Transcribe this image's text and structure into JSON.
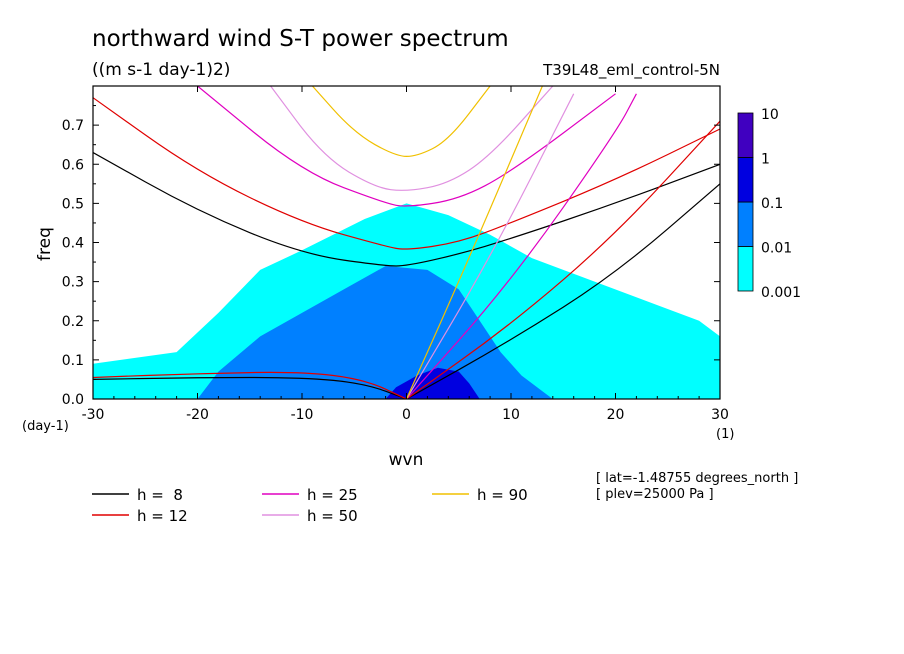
{
  "chart_data": {
    "type": "contour",
    "title": "northward wind S-T power spectrum",
    "units": "((m s-1 day-1)2)",
    "dataset": "T39L48_eml_control-5N",
    "xlabel": "wvn",
    "ylabel": "freq",
    "x_unit_label": "(1)",
    "y_unit_label": "(day-1)",
    "xlim": [
      -30,
      30
    ],
    "ylim": [
      0,
      0.8
    ],
    "x_ticks": [
      -30,
      -20,
      -10,
      0,
      10,
      20,
      30
    ],
    "x_tick_labels": [
      "-30",
      "-20",
      "-10",
      "0",
      "10",
      "20",
      "30"
    ],
    "y_ticks": [
      0,
      0.1,
      0.2,
      0.3,
      0.4,
      0.5,
      0.6,
      0.7
    ],
    "y_tick_labels": [
      "0.0",
      "0.1",
      "0.2",
      "0.3",
      "0.4",
      "0.5",
      "0.6",
      "0.7"
    ],
    "colorbar": {
      "levels": [
        "0.001",
        "0.01",
        "0.1",
        "1",
        "10"
      ],
      "colors": [
        "#00ffff",
        "#0080ff",
        "#0000e0",
        "#4000c0"
      ]
    },
    "contour_regions": [
      {
        "level": "0.001-0.01",
        "color": "#00ffff",
        "polygon": [
          [
            -30,
            0.0
          ],
          [
            -30,
            0.09
          ],
          [
            -22,
            0.12
          ],
          [
            -18,
            0.22
          ],
          [
            -14,
            0.33
          ],
          [
            -10,
            0.38
          ],
          [
            -4,
            0.46
          ],
          [
            0,
            0.5
          ],
          [
            4,
            0.47
          ],
          [
            8,
            0.42
          ],
          [
            12,
            0.36
          ],
          [
            18,
            0.3
          ],
          [
            24,
            0.24
          ],
          [
            28,
            0.2
          ],
          [
            30,
            0.16
          ],
          [
            30,
            0.0
          ]
        ]
      },
      {
        "level": "0.01-0.1",
        "color": "#0080ff",
        "polygon": [
          [
            -20,
            0.0
          ],
          [
            -18,
            0.07
          ],
          [
            -14,
            0.16
          ],
          [
            -10,
            0.22
          ],
          [
            -6,
            0.28
          ],
          [
            -2,
            0.34
          ],
          [
            2,
            0.33
          ],
          [
            5,
            0.28
          ],
          [
            7,
            0.2
          ],
          [
            9,
            0.12
          ],
          [
            11,
            0.06
          ],
          [
            13,
            0.02
          ],
          [
            14,
            0.0
          ]
        ]
      },
      {
        "level": "0.1-1",
        "color": "#0000e0",
        "polygon": [
          [
            -2,
            0.0
          ],
          [
            -1,
            0.03
          ],
          [
            1,
            0.06
          ],
          [
            3,
            0.08
          ],
          [
            5,
            0.07
          ],
          [
            6,
            0.04
          ],
          [
            7,
            0.0
          ]
        ]
      }
    ],
    "dispersion_curves": [
      {
        "name": "h =  8",
        "color": "#000000",
        "points": [
          [
            -30,
            0.63
          ],
          [
            -20,
            0.48
          ],
          [
            -10,
            0.37
          ],
          [
            -2,
            0.34
          ],
          [
            0,
            0.34
          ],
          [
            5,
            0.37
          ],
          [
            10,
            0.41
          ],
          [
            20,
            0.5
          ],
          [
            30,
            0.6
          ]
        ]
      },
      {
        "name": "h =  8 Kelvin",
        "color": "#000000",
        "points": [
          [
            0,
            0.0
          ],
          [
            10,
            0.15
          ],
          [
            20,
            0.32
          ],
          [
            30,
            0.55
          ]
        ]
      },
      {
        "name": "h =  8 MRG",
        "color": "#000000",
        "points": [
          [
            -30,
            0.05
          ],
          [
            -20,
            0.055
          ],
          [
            -10,
            0.055
          ],
          [
            -4,
            0.04
          ],
          [
            0,
            0.0
          ]
        ]
      },
      {
        "name": "h = 12",
        "color": "#e00000",
        "points": [
          [
            -30,
            0.77
          ],
          [
            -20,
            0.58
          ],
          [
            -10,
            0.45
          ],
          [
            -2,
            0.39
          ],
          [
            0,
            0.38
          ],
          [
            5,
            0.4
          ],
          [
            10,
            0.45
          ],
          [
            20,
            0.56
          ],
          [
            30,
            0.69
          ]
        ]
      },
      {
        "name": "h = 12 Kelvin",
        "color": "#e00000",
        "points": [
          [
            0,
            0.0
          ],
          [
            10,
            0.19
          ],
          [
            20,
            0.42
          ],
          [
            30,
            0.71
          ]
        ]
      },
      {
        "name": "h = 12 MRG",
        "color": "#e00000",
        "points": [
          [
            -30,
            0.055
          ],
          [
            -20,
            0.065
          ],
          [
            -10,
            0.07
          ],
          [
            -4,
            0.05
          ],
          [
            0,
            0.0
          ]
        ]
      },
      {
        "name": "h = 25",
        "color": "#e000c0",
        "points": [
          [
            -20,
            0.8
          ],
          [
            -10,
            0.58
          ],
          [
            -2,
            0.5
          ],
          [
            0,
            0.49
          ],
          [
            5,
            0.51
          ],
          [
            10,
            0.58
          ],
          [
            20,
            0.78
          ]
        ]
      },
      {
        "name": "h = 25 Kelvin",
        "color": "#e000c0",
        "points": [
          [
            0,
            0.0
          ],
          [
            10,
            0.3
          ],
          [
            20,
            0.68
          ],
          [
            22,
            0.78
          ]
        ]
      },
      {
        "name": "h = 50",
        "color": "#e090e0",
        "points": [
          [
            -13,
            0.8
          ],
          [
            -8,
            0.62
          ],
          [
            -3,
            0.54
          ],
          [
            0,
            0.53
          ],
          [
            4,
            0.55
          ],
          [
            8,
            0.62
          ],
          [
            14,
            0.8
          ]
        ]
      },
      {
        "name": "h = 50 Kelvin",
        "color": "#e090e0",
        "points": [
          [
            0,
            0.0
          ],
          [
            8,
            0.36
          ],
          [
            16,
            0.78
          ]
        ]
      },
      {
        "name": "h = 90",
        "color": "#f0c000",
        "points": [
          [
            -9,
            0.8
          ],
          [
            -5,
            0.68
          ],
          [
            -1,
            0.62
          ],
          [
            1,
            0.62
          ],
          [
            4,
            0.66
          ],
          [
            8,
            0.8
          ]
        ]
      },
      {
        "name": "h = 90 Kelvin",
        "color": "#f0c000",
        "points": [
          [
            0,
            0.0
          ],
          [
            6,
            0.36
          ],
          [
            13,
            0.8
          ]
        ]
      }
    ],
    "legend": [
      {
        "label": "h =  8",
        "color": "#000000"
      },
      {
        "label": "h = 12",
        "color": "#e00000"
      },
      {
        "label": "h = 25",
        "color": "#e000c0"
      },
      {
        "label": "h = 50",
        "color": "#e090e0"
      },
      {
        "label": "h = 90",
        "color": "#f0c000"
      }
    ],
    "legend_position": "bottom-left",
    "annotations": [
      "[ lat=-1.48755 degrees_north ]",
      "[ plev=25000 Pa ]"
    ]
  }
}
